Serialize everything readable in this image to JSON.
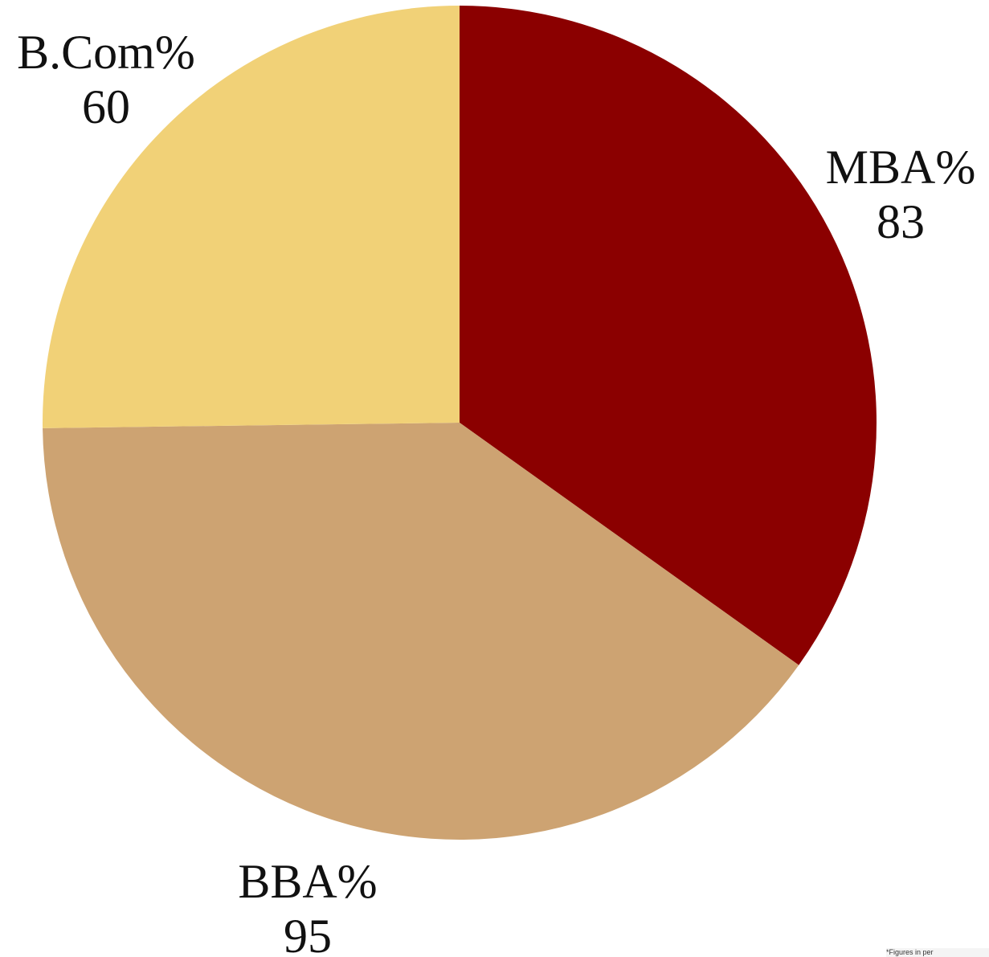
{
  "chart_data": {
    "type": "pie",
    "categories": [
      "MBA%",
      "BBA%",
      "B.Com%"
    ],
    "values": [
      83,
      95,
      60
    ],
    "colors": [
      "#8b0000",
      "#cda372",
      "#f1d177"
    ],
    "start_angle_deg": 0,
    "direction": "clockwise",
    "labels_show_values": true,
    "legend": "none"
  },
  "footnote": "*Figures in per"
}
